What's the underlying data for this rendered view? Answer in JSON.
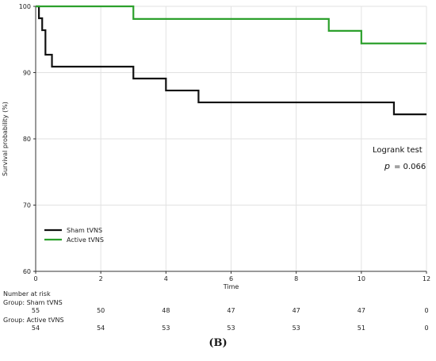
{
  "chart_data": {
    "type": "line",
    "ylabel": "Survival probability (%)",
    "xlabel": "Time",
    "xlim": [
      0,
      12
    ],
    "ylim": [
      60,
      100
    ],
    "x_ticks": [
      0,
      2,
      4,
      6,
      8,
      10,
      12
    ],
    "y_ticks": [
      60,
      70,
      80,
      90,
      100
    ],
    "legend_position": "lower-left",
    "series": [
      {
        "name": "Sham tVNS",
        "color": "#111111",
        "step_points": [
          [
            0,
            100
          ],
          [
            0.1,
            98.2
          ],
          [
            0.2,
            96.4
          ],
          [
            0.3,
            92.7
          ],
          [
            0.5,
            90.9
          ],
          [
            3,
            89.1
          ],
          [
            4,
            87.3
          ],
          [
            5,
            85.5
          ],
          [
            11,
            83.7
          ],
          [
            12,
            83.7
          ]
        ]
      },
      {
        "name": "Active tVNS",
        "color": "#2ca02c",
        "step_points": [
          [
            0,
            100
          ],
          [
            3,
            98.1
          ],
          [
            9,
            96.3
          ],
          [
            10,
            94.4
          ],
          [
            12,
            94.4
          ]
        ]
      }
    ],
    "annotations": {
      "test": "Logrank test",
      "p_symbol": "p",
      "p_value": "= 0.066"
    },
    "risk_table": {
      "title": "Number at risk",
      "groups": [
        {
          "label": "Group: Sham tVNS",
          "values": [
            55,
            50,
            48,
            47,
            47,
            47,
            0
          ]
        },
        {
          "label": "Group: Active tVNS",
          "values": [
            54,
            54,
            53,
            53,
            53,
            51,
            0
          ]
        }
      ]
    }
  },
  "caption": "(B)"
}
